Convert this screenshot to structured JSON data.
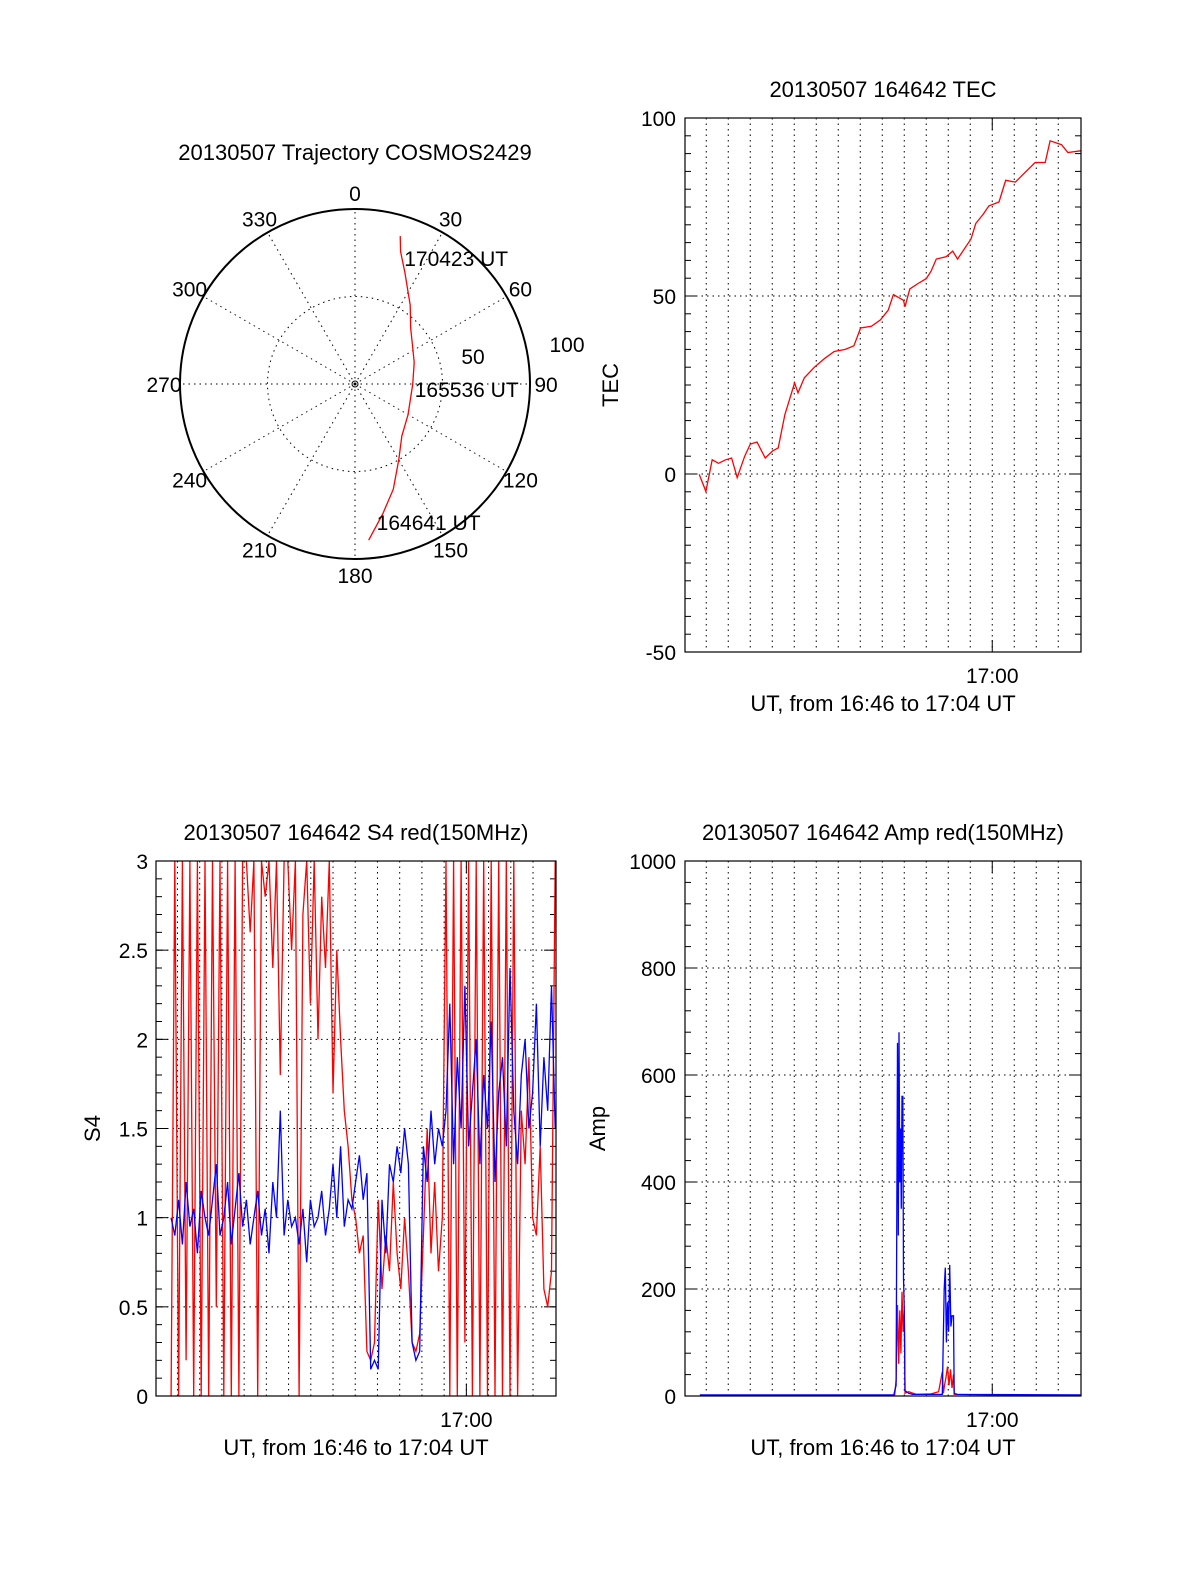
{
  "chart_data": [
    {
      "type": "polar",
      "title": "20130507 Trajectory COSMOS2429",
      "angle_labels": [
        "0",
        "30",
        "60",
        "90",
        "120",
        "150",
        "180",
        "210",
        "240",
        "270",
        "300",
        "330"
      ],
      "radial_labels": [
        "50",
        "100"
      ],
      "rlim": [
        0,
        100
      ],
      "grid": "dotted",
      "series": [
        {
          "name": "trajectory",
          "color": "#ff0000",
          "points_az_r": [
            [
              175,
              89.6
            ],
            [
              168,
              76
            ],
            [
              160,
              64
            ],
            [
              150,
              50
            ],
            [
              138,
              40
            ],
            [
              120,
              35
            ],
            [
              90,
              33
            ],
            [
              70,
              36
            ],
            [
              55,
              40
            ],
            [
              45,
              45
            ],
            [
              35,
              55
            ],
            [
              24,
              70
            ],
            [
              19,
              80
            ],
            [
              17,
              88.4
            ]
          ]
        }
      ],
      "annotations": [
        {
          "text": "164641 UT",
          "point_index": 0
        },
        {
          "text": "165536 UT",
          "point_index": 6
        },
        {
          "text": "170423 UT",
          "point_index": 13
        }
      ]
    },
    {
      "type": "line",
      "title": "20130507 164642 TEC",
      "xlabel": "UT, from 16:46 to 17:04 UT",
      "ylabel": "TEC",
      "x_units": "seconds after 16:46:42",
      "xlim": [
        0,
        1062
      ],
      "ylim": [
        -50,
        100
      ],
      "yticks": [
        -50,
        0,
        50,
        100
      ],
      "y_minor_step": 5,
      "xticks": [
        {
          "t": 824,
          "label": "17:00"
        }
      ],
      "x_grid": {
        "start": 57,
        "step": 59,
        "count": 17
      },
      "grid": true,
      "series": [
        {
          "name": "TEC",
          "color": "#ff0000",
          "x": [
            38,
            56,
            73,
            90,
            109,
            125,
            140,
            160,
            175,
            193,
            215,
            235,
            250,
            268,
            294,
            303,
            320,
            347,
            375,
            400,
            430,
            453,
            471,
            500,
            524,
            545,
            559,
            586,
            590,
            603,
            625,
            647,
            660,
            674,
            700,
            718,
            731,
            767,
            780,
            800,
            815,
            842,
            860,
            886,
            910,
            939,
            966,
            979,
            1010,
            1027,
            1061
          ],
          "y": [
            -0.1,
            -4.9,
            4,
            3,
            4,
            4.5,
            -1,
            5,
            8.4,
            9,
            4.5,
            6.5,
            7.3,
            16.7,
            25.6,
            22.8,
            27,
            30,
            32.5,
            34.4,
            35,
            36,
            41,
            41.5,
            43.3,
            46,
            50.4,
            48.8,
            47,
            52,
            53.5,
            54.9,
            57,
            60.4,
            61,
            62.6,
            60.4,
            66,
            70.4,
            73,
            75.3,
            76.4,
            82.5,
            82,
            84.5,
            87.5,
            87.5,
            93.6,
            92.5,
            90.3,
            90.8
          ]
        }
      ]
    },
    {
      "type": "line",
      "title": "20130507 164642 S4 red(150MHz)",
      "xlabel": "UT, from 16:46 to 17:04 UT",
      "ylabel": "S4",
      "x_units": "seconds after 16:46:42",
      "xlim": [
        0,
        1062
      ],
      "ylim": [
        0,
        3
      ],
      "yticks": [
        0,
        0.5,
        1,
        1.5,
        2,
        2.5,
        3
      ],
      "ytick_labels": [
        "0",
        "0.5",
        "1",
        "1.5",
        "2",
        "2.5",
        "3"
      ],
      "y_minor_step": 0.1,
      "xticks": [
        {
          "t": 824,
          "label": "17:00"
        }
      ],
      "x_grid": {
        "start": 57,
        "step": 59,
        "count": 17
      },
      "grid": true,
      "x_start": 40,
      "x_step": 10,
      "series": [
        {
          "name": "red",
          "color": "#ff0000",
          "values": [
            0,
            3,
            0,
            3,
            0.2,
            3,
            0,
            3,
            0,
            3,
            0,
            3,
            0.5,
            3,
            0,
            3,
            0,
            3,
            0,
            3,
            3,
            2.6,
            3,
            0,
            3,
            2.8,
            3,
            2.4,
            3,
            1.8,
            3,
            3,
            2.5,
            3,
            0,
            2.7,
            3,
            2.2,
            3,
            2.0,
            2.8,
            2.4,
            3,
            1.7,
            2.5,
            2.0,
            1.6,
            1.4,
            1.1,
            1.0,
            0.8,
            0.9,
            0.25,
            0.2,
            0.3,
            1.1,
            0.6,
            0.9,
            0.7,
            1.2,
            0.8,
            0.6,
            1.0,
            0.7,
            0.3,
            0.25,
            0.35,
            0.9,
            1.5,
            0.8,
            1.2,
            0.7,
            1.0,
            3,
            0,
            3,
            0,
            3,
            0.3,
            3,
            0,
            3,
            0,
            3,
            0,
            3,
            0,
            3,
            0,
            3,
            0,
            3,
            0,
            1.6,
            1.3,
            1.9,
            1.0,
            0.9,
            1.4,
            0.6,
            0.5,
            0.7,
            3
          ]
        },
        {
          "name": "blue",
          "color": "#0000ff",
          "values": [
            1.0,
            0.9,
            1.1,
            0.85,
            1.2,
            0.95,
            1.05,
            0.8,
            1.15,
            1.0,
            0.9,
            1.1,
            1.3,
            0.9,
            1.0,
            1.2,
            0.85,
            1.05,
            1.25,
            0.95,
            1.1,
            0.85,
            1.0,
            1.15,
            0.9,
            1.05,
            0.8,
            1.2,
            1.0,
            1.6,
            0.9,
            1.1,
            0.95,
            1.0,
            0.85,
            1.05,
            0.75,
            1.1,
            0.95,
            1.0,
            1.15,
            0.9,
            1.05,
            1.3,
            1.0,
            1.4,
            0.95,
            1.1,
            1.05,
            1.2,
            1.35,
            1.1,
            1.25,
            0.15,
            0.2,
            0.15,
            1.1,
            0.8,
            1.3,
            1.2,
            1.4,
            1.25,
            1.5,
            1.3,
            0.3,
            0.2,
            0.25,
            1.4,
            1.2,
            1.6,
            1.3,
            1.5,
            1.4,
            1.6,
            2.2,
            1.3,
            1.9,
            1.5,
            2.3,
            1.4,
            1.7,
            2.0,
            1.3,
            1.8,
            1.5,
            2.1,
            1.2,
            1.7,
            1.9,
            1.4,
            2.4,
            1.6,
            1.3,
            1.8,
            2.0,
            1.5,
            1.7,
            2.2,
            1.4,
            1.9,
            1.6,
            2.3,
            1.5
          ]
        }
      ]
    },
    {
      "type": "line",
      "title": "20130507 164642 Amp red(150MHz)",
      "xlabel": "UT, from 16:46 to 17:04 UT",
      "ylabel": "Amp",
      "x_units": "seconds after 16:46:42",
      "xlim": [
        0,
        1062
      ],
      "ylim": [
        0,
        1000
      ],
      "yticks": [
        0,
        200,
        400,
        600,
        800,
        1000
      ],
      "y_minor_step": 40,
      "xticks": [
        {
          "t": 824,
          "label": "17:00"
        }
      ],
      "x_grid": {
        "start": 57,
        "step": 59,
        "count": 17
      },
      "grid": true,
      "series": [
        {
          "name": "red",
          "color": "#ff0000",
          "points": [
            [
              40,
              0
            ],
            [
              562,
              0
            ],
            [
              566,
              30
            ],
            [
              570,
              170
            ],
            [
              573,
              60
            ],
            [
              576,
              160
            ],
            [
              579,
              80
            ],
            [
              582,
              195
            ],
            [
              585,
              120
            ],
            [
              588,
              160
            ],
            [
              590,
              5
            ],
            [
              600,
              8
            ],
            [
              620,
              3
            ],
            [
              660,
              4
            ],
            [
              680,
              8
            ],
            [
              690,
              45
            ],
            [
              693,
              5
            ],
            [
              696,
              20
            ],
            [
              700,
              35
            ],
            [
              704,
              55
            ],
            [
              708,
              20
            ],
            [
              712,
              50
            ],
            [
              716,
              15
            ],
            [
              720,
              40
            ],
            [
              722,
              3
            ],
            [
              1061,
              0
            ]
          ]
        },
        {
          "name": "blue",
          "color": "#0000ff",
          "points": [
            [
              40,
              2
            ],
            [
              560,
              2
            ],
            [
              566,
              20
            ],
            [
              570,
              660
            ],
            [
              572,
              300
            ],
            [
              574,
              680
            ],
            [
              576,
              400
            ],
            [
              578,
              500
            ],
            [
              580,
              350
            ],
            [
              582,
              560
            ],
            [
              584,
              560
            ],
            [
              586,
              220
            ],
            [
              588,
              160
            ],
            [
              590,
              10
            ],
            [
              600,
              5
            ],
            [
              610,
              3
            ],
            [
              690,
              3
            ],
            [
              695,
              200
            ],
            [
              698,
              240
            ],
            [
              701,
              100
            ],
            [
              704,
              175
            ],
            [
              707,
              120
            ],
            [
              710,
              245
            ],
            [
              713,
              130
            ],
            [
              716,
              150
            ],
            [
              720,
              150
            ],
            [
              722,
              5
            ],
            [
              730,
              3
            ],
            [
              1061,
              2
            ]
          ]
        }
      ]
    }
  ]
}
